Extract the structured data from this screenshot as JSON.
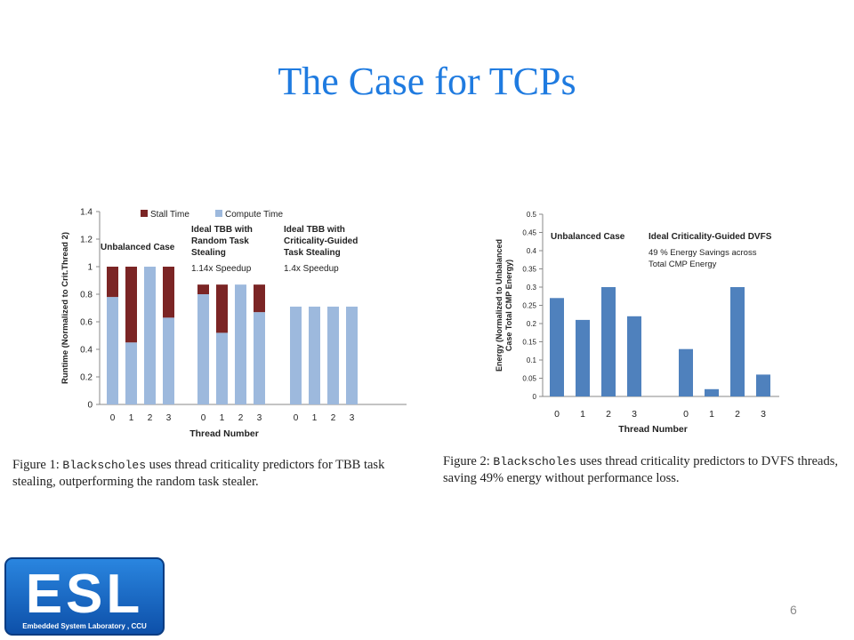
{
  "slide": {
    "title": "The Case for TCPs",
    "page_number": "6"
  },
  "captions": [
    {
      "prefix": "Figure 1:",
      "code": "Blackscholes",
      "text": "uses thread criticality predictors for TBB task stealing, outperforming the random task stealer."
    },
    {
      "prefix": "Figure 2:",
      "code": "Blackscholes",
      "text": "uses thread criticality predictors to DVFS threads, saving 49% energy without performance loss."
    }
  ],
  "logo": {
    "letters": "ESL",
    "subtitle": "Embedded System Laboratory , CCU"
  },
  "colors": {
    "title": "#1f7be0",
    "stall": "#7b2525",
    "compute": "#9db9dd",
    "energy_bar": "#4f81bd",
    "logo_bg": "#1565c0"
  },
  "chart_data": [
    {
      "type": "bar",
      "stacked": true,
      "ylabel": "Runtime (Normalized to Crit.Thread 2)",
      "xlabel": "Thread Number",
      "ylim": [
        0,
        1.4
      ],
      "yticks": [
        "0",
        "0.2",
        "0.4",
        "0.6",
        "0.8",
        "1",
        "1.2",
        "1.4"
      ],
      "legend": [
        "Stall Time",
        "Compute Time"
      ],
      "legend_position": "top",
      "groups": [
        {
          "title": "Unbalanced Case",
          "note": "",
          "categories": [
            "0",
            "1",
            "2",
            "3"
          ],
          "compute": [
            0.78,
            0.45,
            1.0,
            0.63
          ],
          "stall": [
            0.22,
            0.55,
            0.0,
            0.37
          ]
        },
        {
          "title": "Ideal TBB with Random Task Stealing",
          "note": "1.14x Speedup",
          "categories": [
            "0",
            "1",
            "2",
            "3"
          ],
          "compute": [
            0.8,
            0.52,
            0.87,
            0.67
          ],
          "stall": [
            0.07,
            0.35,
            0.0,
            0.2
          ]
        },
        {
          "title": "Ideal TBB with Criticality-Guided Task Stealing",
          "note": "1.4x Speedup",
          "categories": [
            "0",
            "1",
            "2",
            "3"
          ],
          "compute": [
            0.71,
            0.71,
            0.71,
            0.71
          ],
          "stall": [
            0.0,
            0.0,
            0.0,
            0.0
          ]
        }
      ]
    },
    {
      "type": "bar",
      "ylabel": "Energy (Normalized to Unbalanced Case Total CMP Energy)",
      "xlabel": "Thread Number",
      "ylim": [
        0,
        0.5
      ],
      "yticks": [
        "0",
        "0.05",
        "0.1",
        "0.15",
        "0.2",
        "0.25",
        "0.3",
        "0.35",
        "0.4",
        "0.45",
        "0.5"
      ],
      "groups": [
        {
          "title": "Unbalanced Case",
          "note": "",
          "categories": [
            "0",
            "1",
            "2",
            "3"
          ],
          "values": [
            0.27,
            0.21,
            0.3,
            0.22
          ]
        },
        {
          "title": "Ideal Criticality-Guided DVFS",
          "note": "49 % Energy Savings across Total CMP Energy",
          "categories": [
            "0",
            "1",
            "2",
            "3"
          ],
          "values": [
            0.13,
            0.02,
            0.3,
            0.06
          ]
        }
      ]
    }
  ]
}
